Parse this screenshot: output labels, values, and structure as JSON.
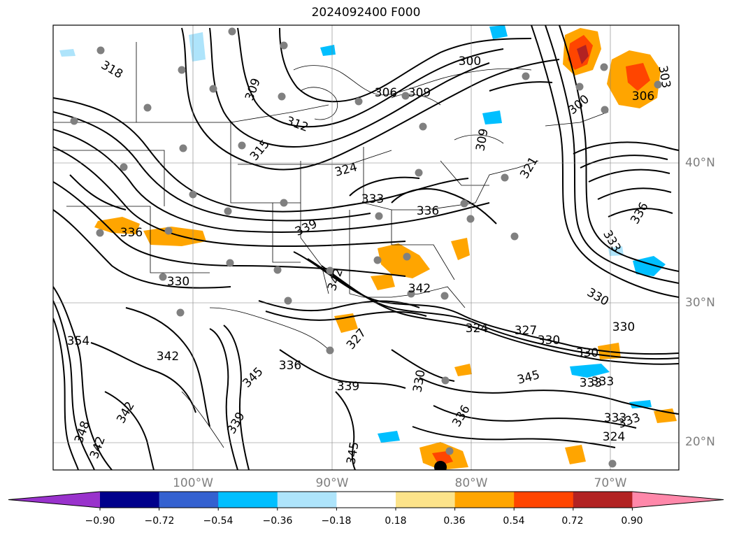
{
  "title": "2024092400 F000",
  "lat_labels": [
    "40°N",
    "30°N",
    "20°N"
  ],
  "lon_labels": [
    "100°W",
    "90°W",
    "80°W",
    "70°W"
  ],
  "contour_labels": [
    "318",
    "309",
    "312",
    "315",
    "300",
    "306",
    "309",
    "300",
    "306",
    "303",
    "309",
    "321",
    "324",
    "333",
    "336",
    "339",
    "336",
    "330",
    "342",
    "342",
    "336",
    "333",
    "330",
    "330",
    "324",
    "327",
    "330",
    "333",
    "333",
    "345",
    "336",
    "339",
    "354",
    "342",
    "327",
    "345",
    "342",
    "348",
    "342",
    "330",
    "336",
    "339",
    "345",
    "333",
    "324",
    "333",
    "330"
  ],
  "colorbar": {
    "ticks": [
      "−0.90",
      "−0.72",
      "−0.54",
      "−0.36",
      "−0.18",
      "0.18",
      "0.36",
      "0.54",
      "0.72",
      "0.90"
    ],
    "colors": [
      "#9932cc",
      "#00008b",
      "#3461d0",
      "#00bfff",
      "#aee4fb",
      "#ffffff",
      "#fce38a",
      "#ffa500",
      "#ff4500",
      "#b22222",
      "#ff88aa"
    ]
  },
  "colors": {
    "contour": "#000000",
    "grid": "#7f7f7f",
    "station_dot": "#808080"
  }
}
